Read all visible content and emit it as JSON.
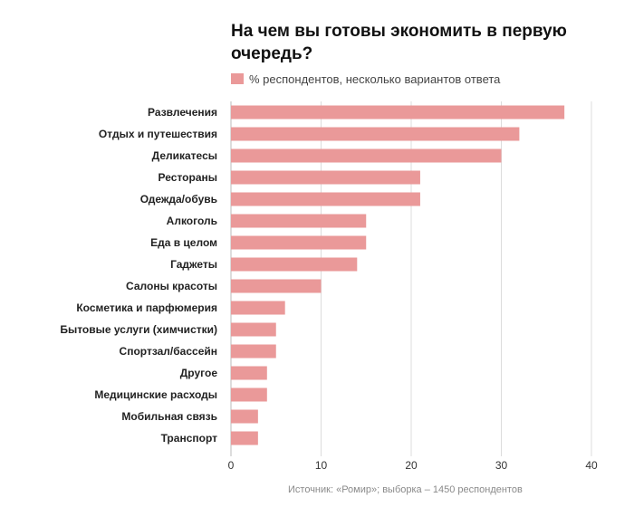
{
  "chart_data": {
    "type": "bar",
    "orientation": "horizontal",
    "title": "На чем вы готовы экономить в первую очередь?",
    "legend": {
      "label": "% респондентов, несколько вариантов ответа",
      "placement": "top-left"
    },
    "categories": [
      "Развлечения",
      "Отдых и путешествия",
      "Деликатесы",
      "Рестораны",
      "Одежда/обувь",
      "Алкоголь",
      "Еда в целом",
      "Гаджеты",
      "Салоны красоты",
      "Косметика и парфюмерия",
      "Бытовые услуги (химчистки)",
      "Спортзал/бассейн",
      "Другое",
      "Медицинские расходы",
      "Мобильная связь",
      "Транспорт"
    ],
    "values": [
      37,
      32,
      30,
      21,
      21,
      15,
      15,
      14,
      10,
      6,
      5,
      5,
      4,
      4,
      3,
      3
    ],
    "xlim": [
      0,
      40
    ],
    "xticks": [
      0,
      10,
      20,
      30,
      40
    ],
    "xlabel": "",
    "ylabel": "",
    "grid": true,
    "bar_color": "#ea9999",
    "source": "Источник: «Ромир»; выборка – 1450 респондентов"
  }
}
